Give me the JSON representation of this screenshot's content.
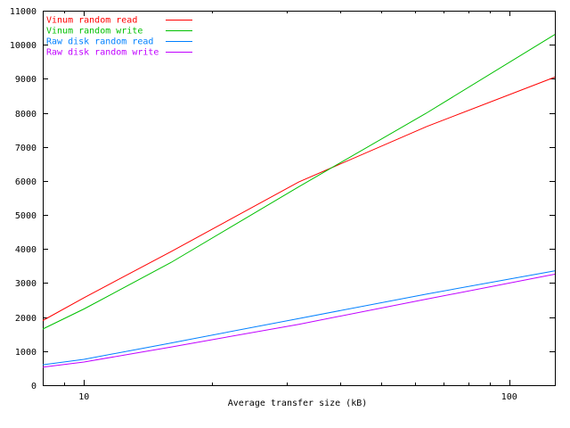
{
  "chart_data": {
    "type": "line",
    "title": "",
    "xlabel": "Average transfer size (kB)",
    "ylabel": "",
    "xscale": "log",
    "xlim": [
      8,
      128
    ],
    "ylim": [
      0,
      11000
    ],
    "x_ticks": [
      10,
      100
    ],
    "y_ticks": [
      0,
      1000,
      2000,
      3000,
      4000,
      5000,
      6000,
      7000,
      8000,
      9000,
      10000,
      11000
    ],
    "grid": false,
    "legend_position": "top-left",
    "series": [
      {
        "name": "Vinum random read",
        "color": "#ff0000",
        "x": [
          8,
          10,
          16,
          32,
          64,
          128
        ],
        "values": [
          1900,
          2570,
          3920,
          5970,
          7600,
          9050
        ]
      },
      {
        "name": "Vinum random write",
        "color": "#00c000",
        "x": [
          8,
          10,
          16,
          32,
          64,
          128
        ],
        "values": [
          1650,
          2240,
          3600,
          5830,
          8000,
          10300
        ]
      },
      {
        "name": "Raw disk random read",
        "color": "#0080ff",
        "x": [
          8,
          10,
          16,
          32,
          64,
          128
        ],
        "values": [
          600,
          760,
          1240,
          1960,
          2680,
          3360
        ]
      },
      {
        "name": "Raw disk random write",
        "color": "#c000ff",
        "x": [
          8,
          10,
          16,
          32,
          64,
          128
        ],
        "values": [
          530,
          680,
          1120,
          1790,
          2530,
          3260
        ]
      }
    ]
  }
}
